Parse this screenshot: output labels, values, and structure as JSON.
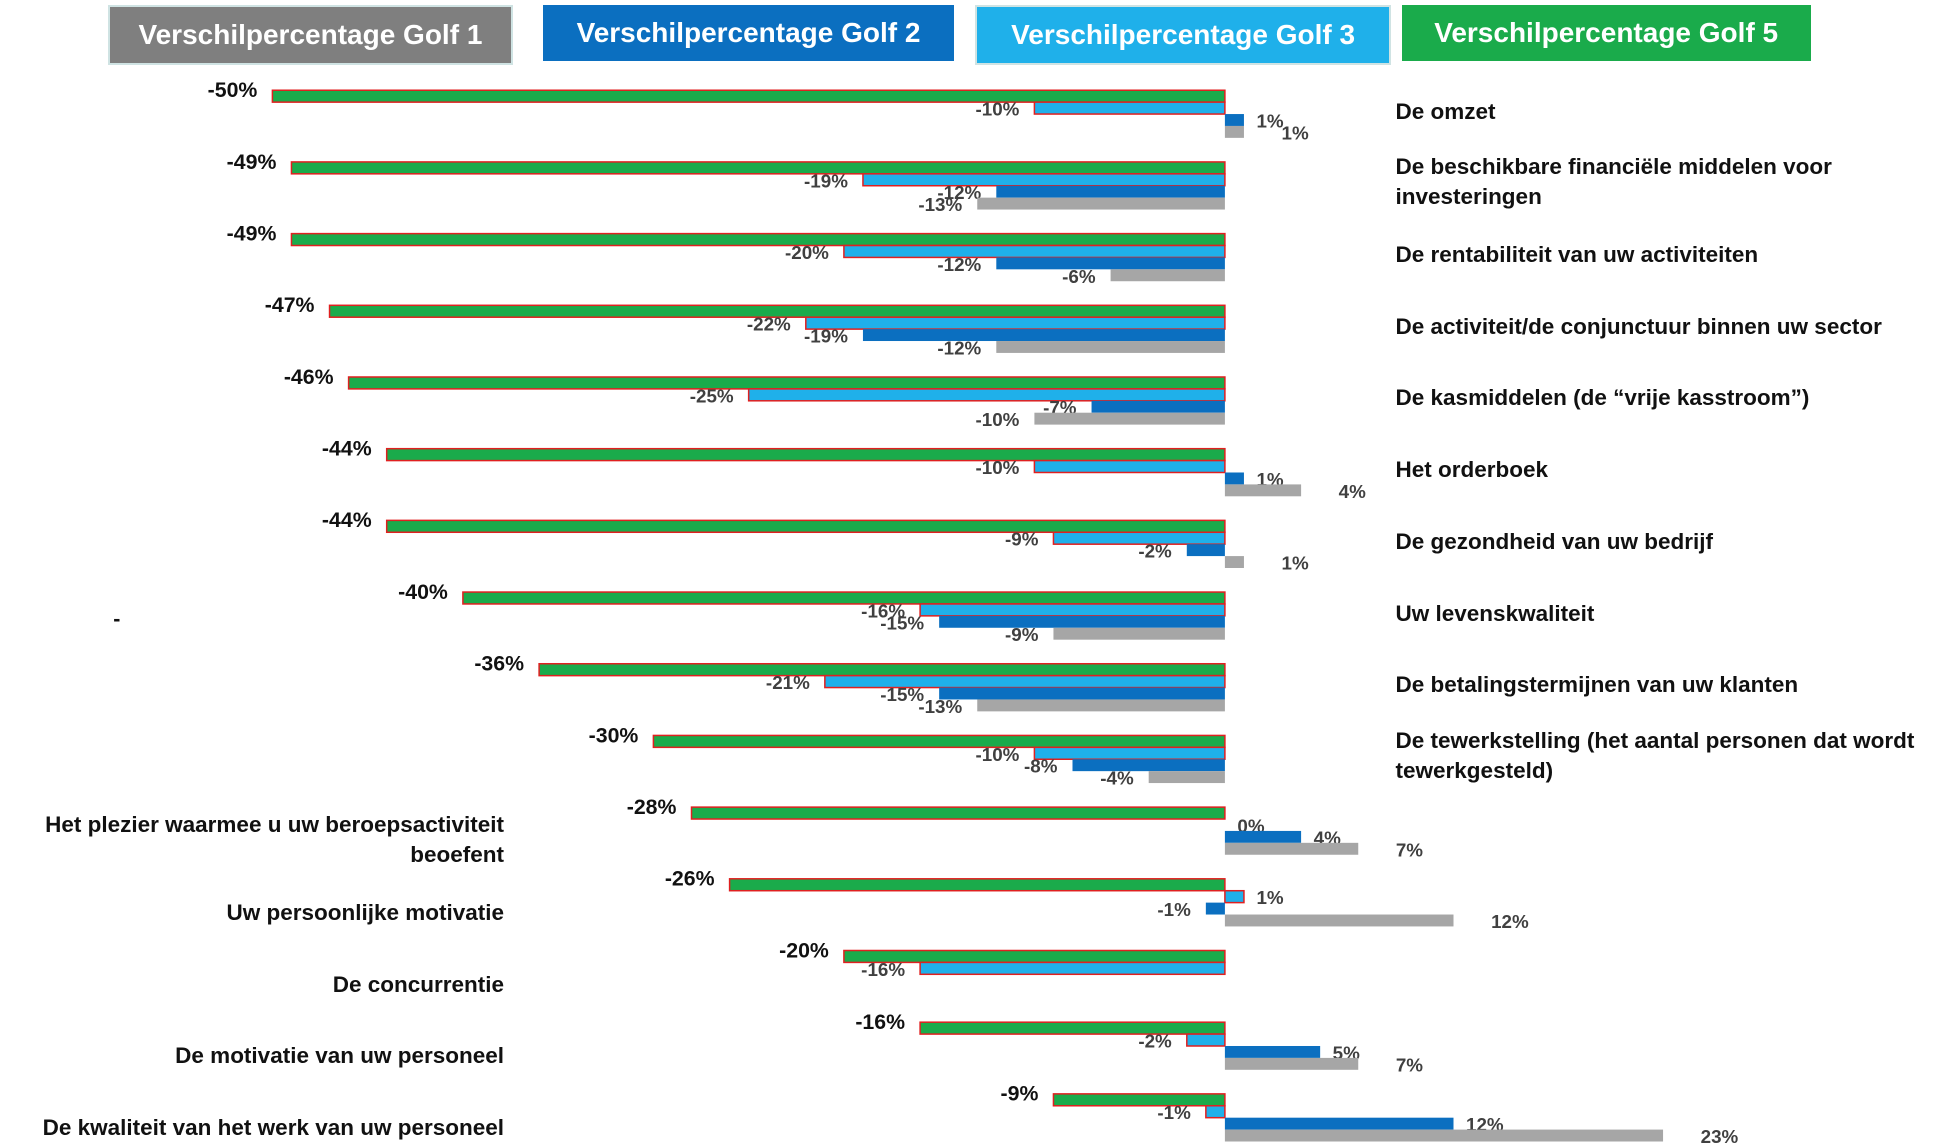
{
  "chart_data": {
    "type": "bar",
    "orientation": "horizontal",
    "annotations": [
      "-"
    ],
    "categories": [
      "De omzet",
      "De beschikbare financiële middelen voor investeringen",
      "De rentabiliteit van uw activiteiten",
      "De activiteit/de conjunctuur binnen uw sector",
      "De kasmiddelen (de “vrije kasstroom”)",
      "Het orderboek",
      "De gezondheid van uw bedrijf",
      "Uw levenskwaliteit",
      "De betalingstermijnen van uw klanten",
      "De tewerkstelling (het aantal personen dat wordt tewerkgesteld)",
      "Het plezier waarmee u uw beroepsactiviteit beoefent",
      "Uw persoonlijke motivatie",
      "De concurrentie",
      "De motivatie van uw personeel",
      "De kwaliteit van het werk van uw personeel"
    ],
    "series": [
      {
        "name": "Verschilpercentage Golf 5",
        "color": "#1aab4b",
        "values": [
          -50,
          -49,
          -49,
          -47,
          -46,
          -44,
          -44,
          -40,
          -36,
          -30,
          -28,
          -26,
          -20,
          -16,
          -9
        ],
        "value_labels": [
          "-50%",
          "-49%",
          "-49%",
          "-47%",
          "-46%",
          "-44%",
          "-44%",
          "-40%",
          "-36%",
          "-30%",
          "-28%",
          "-26%",
          "-20%",
          "-16%",
          "-9%"
        ]
      },
      {
        "name": "Verschilpercentage Golf 3",
        "color": "#1fb0ea",
        "values": [
          -10,
          -19,
          -20,
          -22,
          -25,
          -10,
          -9,
          -16,
          -21,
          -10,
          0,
          1,
          -16,
          -2,
          -1
        ],
        "value_labels": [
          "-10%",
          "-19%",
          "-20%",
          "-22%",
          "-25%",
          "-10%",
          "-9%",
          "-16%",
          "-21%",
          "-10%",
          "0%",
          "1%",
          "-16%",
          "-2%",
          "-1%"
        ]
      },
      {
        "name": "Verschilpercentage Golf 2",
        "color": "#0b6fc0",
        "values": [
          1,
          -12,
          -12,
          -19,
          -7,
          1,
          -2,
          -15,
          -15,
          -8,
          4,
          -1,
          null,
          5,
          12
        ],
        "value_labels": [
          "1%",
          "-12%",
          "-12%",
          "-19%",
          "-7%",
          "1%",
          "-2%",
          "-15%",
          "-15%",
          "-8%",
          "4%",
          "-1%",
          null,
          "5%",
          "12%"
        ]
      },
      {
        "name": "Verschilpercentage Golf 1",
        "color": "#a6a6a6",
        "values": [
          1,
          -13,
          -6,
          -12,
          -10,
          4,
          1,
          -9,
          -13,
          -4,
          7,
          12,
          null,
          7,
          23
        ],
        "value_labels": [
          "1%",
          "-13%",
          "-6%",
          "-12%",
          "-10%",
          "4%",
          "1%",
          "-9%",
          "-13%",
          "-4%",
          "7%",
          "12%",
          null,
          "7%",
          "23%"
        ]
      }
    ]
  }
}
